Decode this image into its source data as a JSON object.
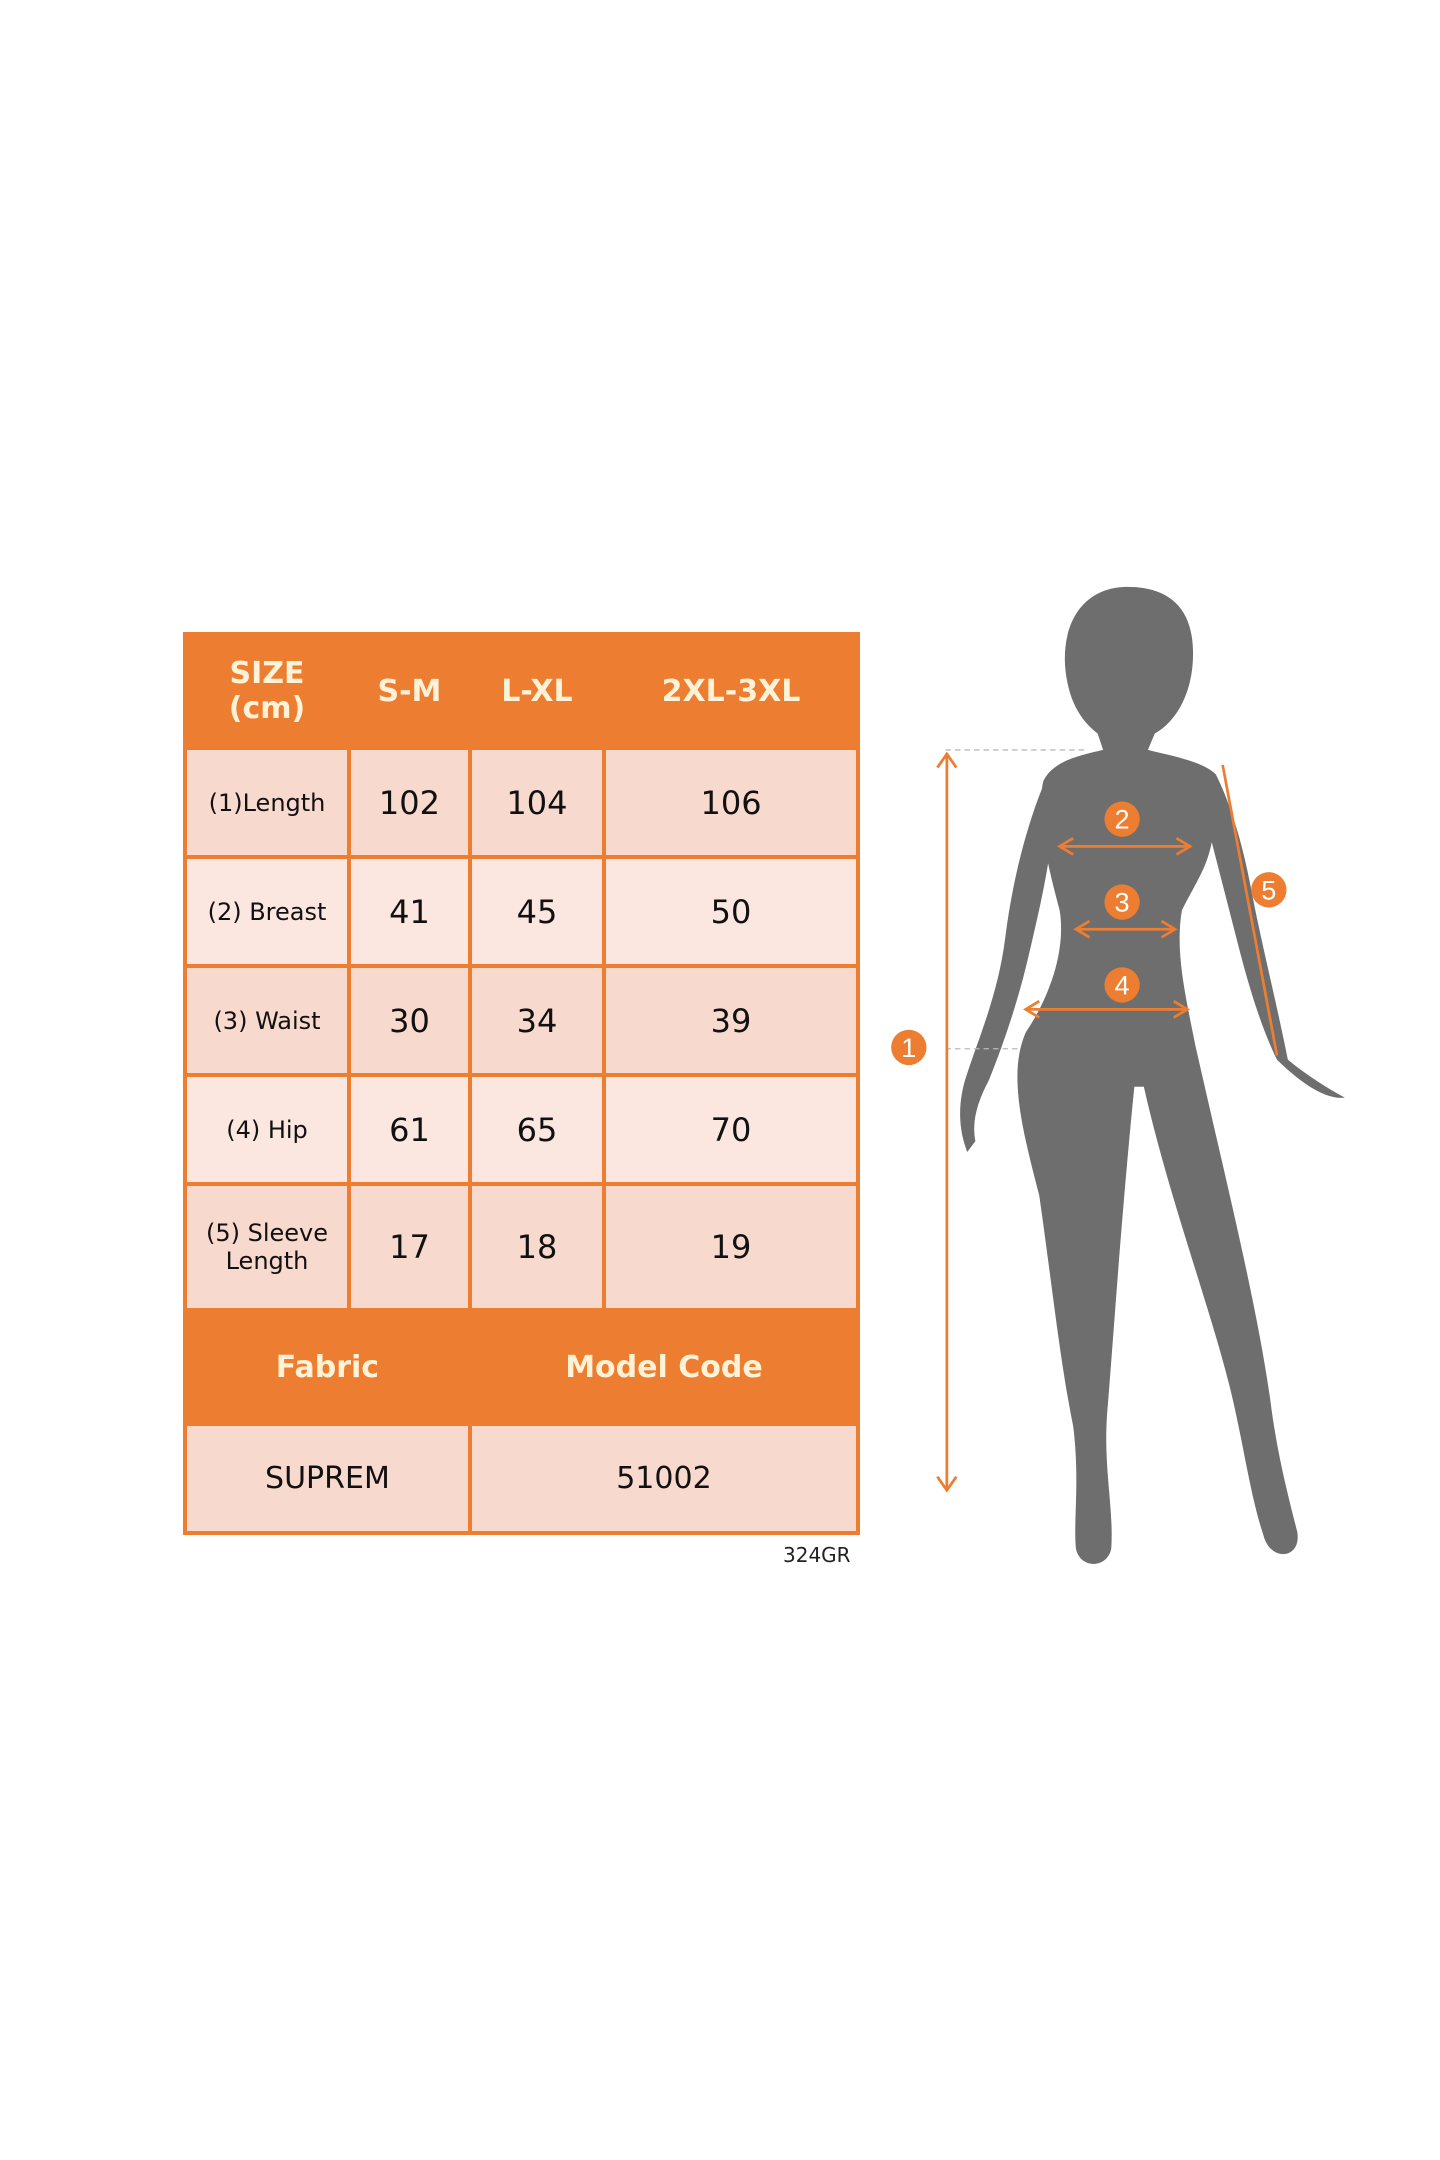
{
  "table": {
    "header": [
      "SIZE\n(cm)",
      "S-M",
      "L-XL",
      "2XL-3XL"
    ],
    "header_line1": "SIZE",
    "header_line2": "(cm)",
    "rows": [
      {
        "label": "(1)Length",
        "values": [
          "102",
          "104",
          "106"
        ]
      },
      {
        "label": "(2) Breast",
        "values": [
          "41",
          "45",
          "50"
        ]
      },
      {
        "label": "(3) Waist",
        "values": [
          "30",
          "34",
          "39"
        ]
      },
      {
        "label": "(4) Hip",
        "values": [
          "61",
          "65",
          "70"
        ]
      },
      {
        "label_line1": "(5) Sleeve",
        "label_line2": "Length",
        "values": [
          "17",
          "18",
          "19"
        ]
      }
    ],
    "footer_headers": [
      "Fabric",
      "Model Code"
    ],
    "footer_values": [
      "SUPREM",
      "51002"
    ]
  },
  "model_tag": "324GR",
  "figure": {
    "markers": [
      "1",
      "2",
      "3",
      "4",
      "5"
    ],
    "colors": {
      "accent": "#ED7D31",
      "silhouette": "#6E6E6E",
      "cell": "#F8D9CE"
    }
  }
}
